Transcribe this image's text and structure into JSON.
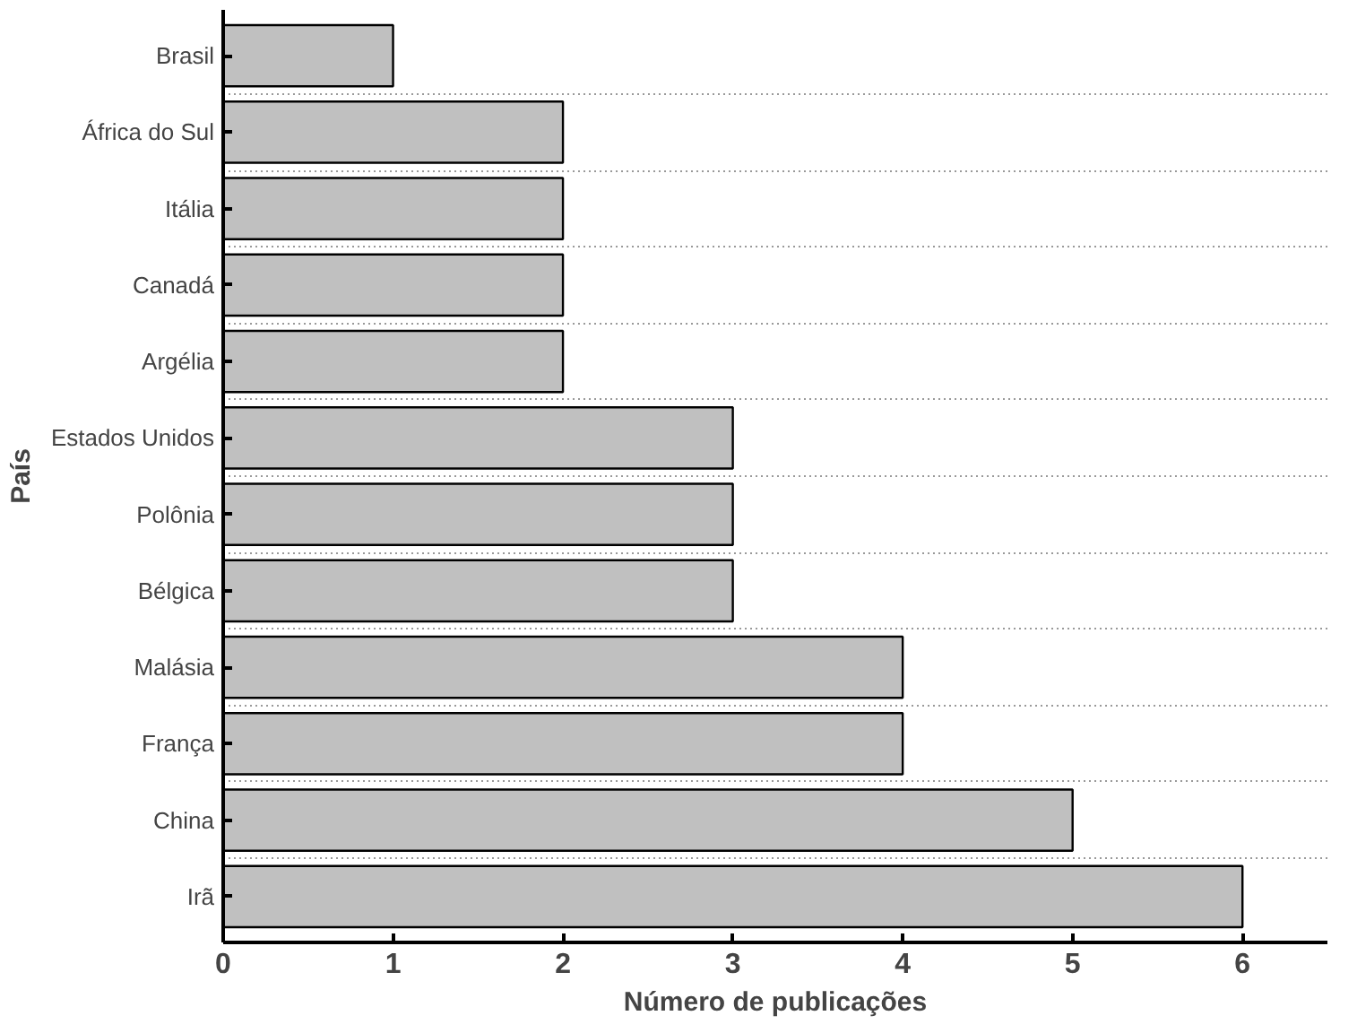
{
  "chart_data": {
    "type": "bar",
    "orientation": "horizontal",
    "xlabel": "Número de publicações",
    "ylabel": "País",
    "categories": [
      "Brasil",
      "África do Sul",
      "Itália",
      "Canadá",
      "Argélia",
      "Estados Unidos",
      "Polônia",
      "Bélgica",
      "Malásia",
      "França",
      "China",
      "Irã"
    ],
    "values": [
      1,
      2,
      2,
      2,
      2,
      3,
      3,
      3,
      4,
      4,
      5,
      6
    ],
    "color": "#c0c0c0",
    "xlim": [
      0,
      6.5
    ],
    "xticks": [
      0,
      1,
      2,
      3,
      4,
      5,
      6
    ],
    "grid": "y"
  }
}
